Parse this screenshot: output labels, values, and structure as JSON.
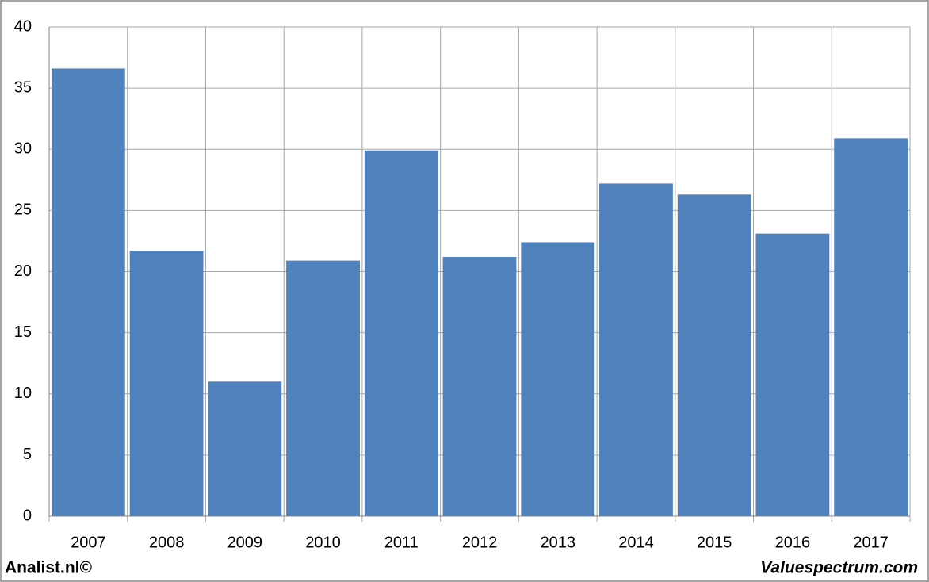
{
  "chart_data": {
    "type": "bar",
    "categories": [
      "2007",
      "2008",
      "2009",
      "2010",
      "2011",
      "2012",
      "2013",
      "2014",
      "2015",
      "2016",
      "2017"
    ],
    "values": [
      36.6,
      21.7,
      11.0,
      20.9,
      29.9,
      21.2,
      22.4,
      27.2,
      26.3,
      23.1,
      30.9
    ],
    "color": "#4f81bd",
    "ylim": [
      0,
      40
    ],
    "yticks": [
      0,
      5,
      10,
      15,
      20,
      25,
      30,
      35,
      40
    ],
    "grid": true,
    "footer_left": "Analist.nl©",
    "footer_right": "Valuespectrum.com"
  }
}
